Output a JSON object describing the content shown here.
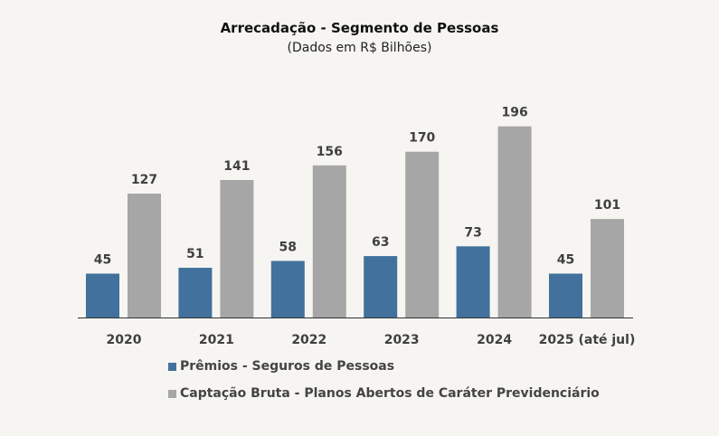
{
  "chart_data": {
    "type": "bar",
    "title": "Arrecadação - Segmento de Pessoas",
    "subtitle": "(Dados em R$ Bilhões)",
    "categories": [
      "2020",
      "2021",
      "2022",
      "2023",
      "2024",
      "2025 (até jul)"
    ],
    "series": [
      {
        "name": "Prêmios - Seguros de Pessoas",
        "color": "#41719c",
        "values": [
          45,
          51,
          58,
          63,
          73,
          45
        ]
      },
      {
        "name": "Captação Bruta - Planos Abertos de Caráter Previdenciário",
        "color": "#a6a6a6",
        "values": [
          127,
          141,
          156,
          170,
          196,
          101
        ]
      }
    ],
    "xlabel": "",
    "ylabel": "",
    "ylim": [
      0,
      200
    ],
    "grid": false,
    "legend_position": "bottom-left"
  }
}
